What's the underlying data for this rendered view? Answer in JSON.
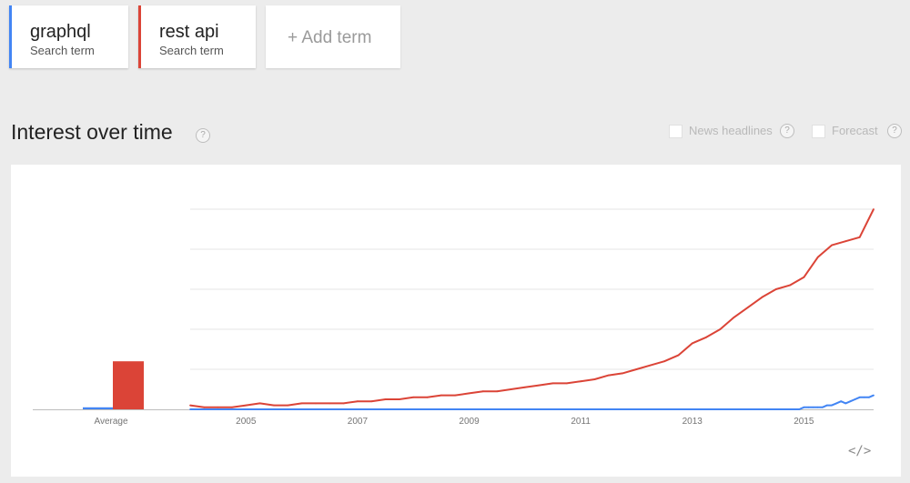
{
  "search_terms": [
    {
      "name": "graphql",
      "subtitle": "Search term",
      "color": "#4285f4"
    },
    {
      "name": "rest api",
      "subtitle": "Search term",
      "color": "#db4437"
    }
  ],
  "add_term": {
    "label": "+ Add term"
  },
  "section": {
    "title": "Interest over time",
    "help_icon": "?"
  },
  "options": {
    "news_headlines": {
      "label": "News headlines",
      "checked": false
    },
    "forecast": {
      "label": "Forecast",
      "checked": false
    }
  },
  "embed_icon": "</>",
  "chart_data": {
    "type": "line",
    "title": "",
    "xlabel": "",
    "ylabel": "",
    "ylim": [
      0,
      100
    ],
    "x_start": "2004-01",
    "x_end": "2016-04",
    "x_ticks": [
      "2005",
      "2007",
      "2009",
      "2011",
      "2013",
      "2015"
    ],
    "grid": true,
    "average": {
      "label": "Average",
      "values": [
        {
          "series": "graphql",
          "value": 1
        },
        {
          "series": "rest api",
          "value": 24
        }
      ]
    },
    "series": [
      {
        "name": "graphql",
        "color": "#4285f4",
        "x": [
          "2004-01",
          "2014-12",
          "2015-01",
          "2015-02",
          "2015-03",
          "2015-04",
          "2015-05",
          "2015-06",
          "2015-07",
          "2015-08",
          "2015-09",
          "2015-10",
          "2015-11",
          "2015-12",
          "2016-01",
          "2016-02",
          "2016-03",
          "2016-04"
        ],
        "values": [
          0,
          0,
          1,
          1,
          1,
          1,
          1,
          2,
          2,
          3,
          4,
          3,
          4,
          5,
          6,
          6,
          6,
          7
        ]
      },
      {
        "name": "rest api",
        "color": "#db4437",
        "x": [
          "2004-01",
          "2004-04",
          "2004-07",
          "2004-10",
          "2005-01",
          "2005-04",
          "2005-07",
          "2005-10",
          "2006-01",
          "2006-04",
          "2006-07",
          "2006-10",
          "2007-01",
          "2007-04",
          "2007-07",
          "2007-10",
          "2008-01",
          "2008-04",
          "2008-07",
          "2008-10",
          "2009-01",
          "2009-04",
          "2009-07",
          "2009-10",
          "2010-01",
          "2010-04",
          "2010-07",
          "2010-10",
          "2011-01",
          "2011-04",
          "2011-07",
          "2011-10",
          "2012-01",
          "2012-04",
          "2012-07",
          "2012-10",
          "2013-01",
          "2013-04",
          "2013-07",
          "2013-10",
          "2014-01",
          "2014-04",
          "2014-07",
          "2014-10",
          "2015-01",
          "2015-04",
          "2015-07",
          "2015-10",
          "2016-01",
          "2016-04"
        ],
        "values": [
          2,
          1,
          1,
          1,
          2,
          3,
          2,
          2,
          3,
          3,
          3,
          3,
          4,
          4,
          5,
          5,
          6,
          6,
          7,
          7,
          8,
          9,
          9,
          10,
          11,
          12,
          13,
          13,
          14,
          15,
          17,
          18,
          20,
          22,
          24,
          27,
          33,
          36,
          40,
          46,
          51,
          56,
          60,
          62,
          66,
          76,
          82,
          84,
          86,
          100
        ]
      }
    ]
  }
}
